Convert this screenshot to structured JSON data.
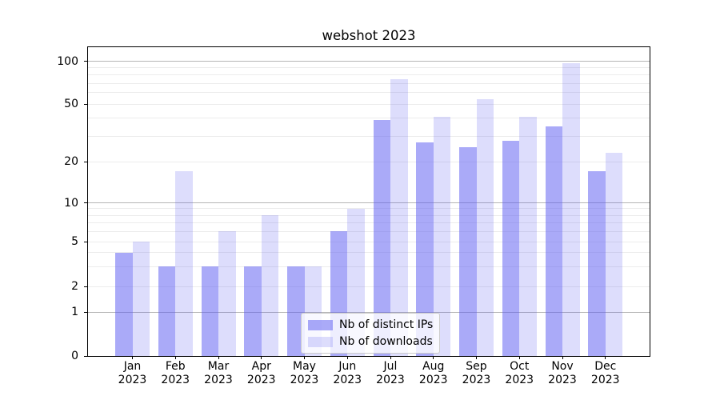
{
  "title": "webshot 2023",
  "legend": {
    "position": "lower center",
    "entries": [
      "Nb of distinct IPs",
      "Nb of downloads"
    ]
  },
  "colors": {
    "bar_base": "#5555f2",
    "series_ips": "rgba(85,85,242,0.5)",
    "series_downloads": "rgba(85,85,242,0.2)",
    "major_grid": "#b6b6b6",
    "minor_grid": "#ececec",
    "axis": "#000000"
  },
  "chart_data": {
    "type": "bar",
    "title": "webshot 2023",
    "categories": [
      "Jan 2023",
      "Feb 2023",
      "Mar 2023",
      "Apr 2023",
      "May 2023",
      "Jun 2023",
      "Jul 2023",
      "Aug 2023",
      "Sep 2023",
      "Oct 2023",
      "Nov 2023",
      "Dec 2023"
    ],
    "series": [
      {
        "name": "Nb of distinct IPs",
        "color": "rgba(85,85,242,0.5)",
        "values": [
          4,
          3,
          3,
          3,
          3,
          6,
          39,
          27,
          25,
          28,
          35,
          17
        ]
      },
      {
        "name": "Nb of downloads",
        "color": "rgba(85,85,242,0.2)",
        "values": [
          5,
          17,
          6,
          8,
          3,
          9,
          75,
          41,
          54,
          41,
          97,
          23
        ]
      }
    ],
    "xlabel": "",
    "ylabel": "",
    "y_axis": {
      "scale": "symlog",
      "ticks": [
        0,
        1,
        2,
        5,
        10,
        20,
        50,
        100
      ],
      "major_gridlines": [
        1,
        10,
        100
      ],
      "minor_gridlines": [
        2,
        3,
        4,
        5,
        6,
        7,
        8,
        9,
        20,
        30,
        40,
        50,
        60,
        70,
        80,
        90
      ],
      "ylim": [
        0,
        110
      ]
    },
    "grid": true,
    "legend_position": "lower center"
  }
}
